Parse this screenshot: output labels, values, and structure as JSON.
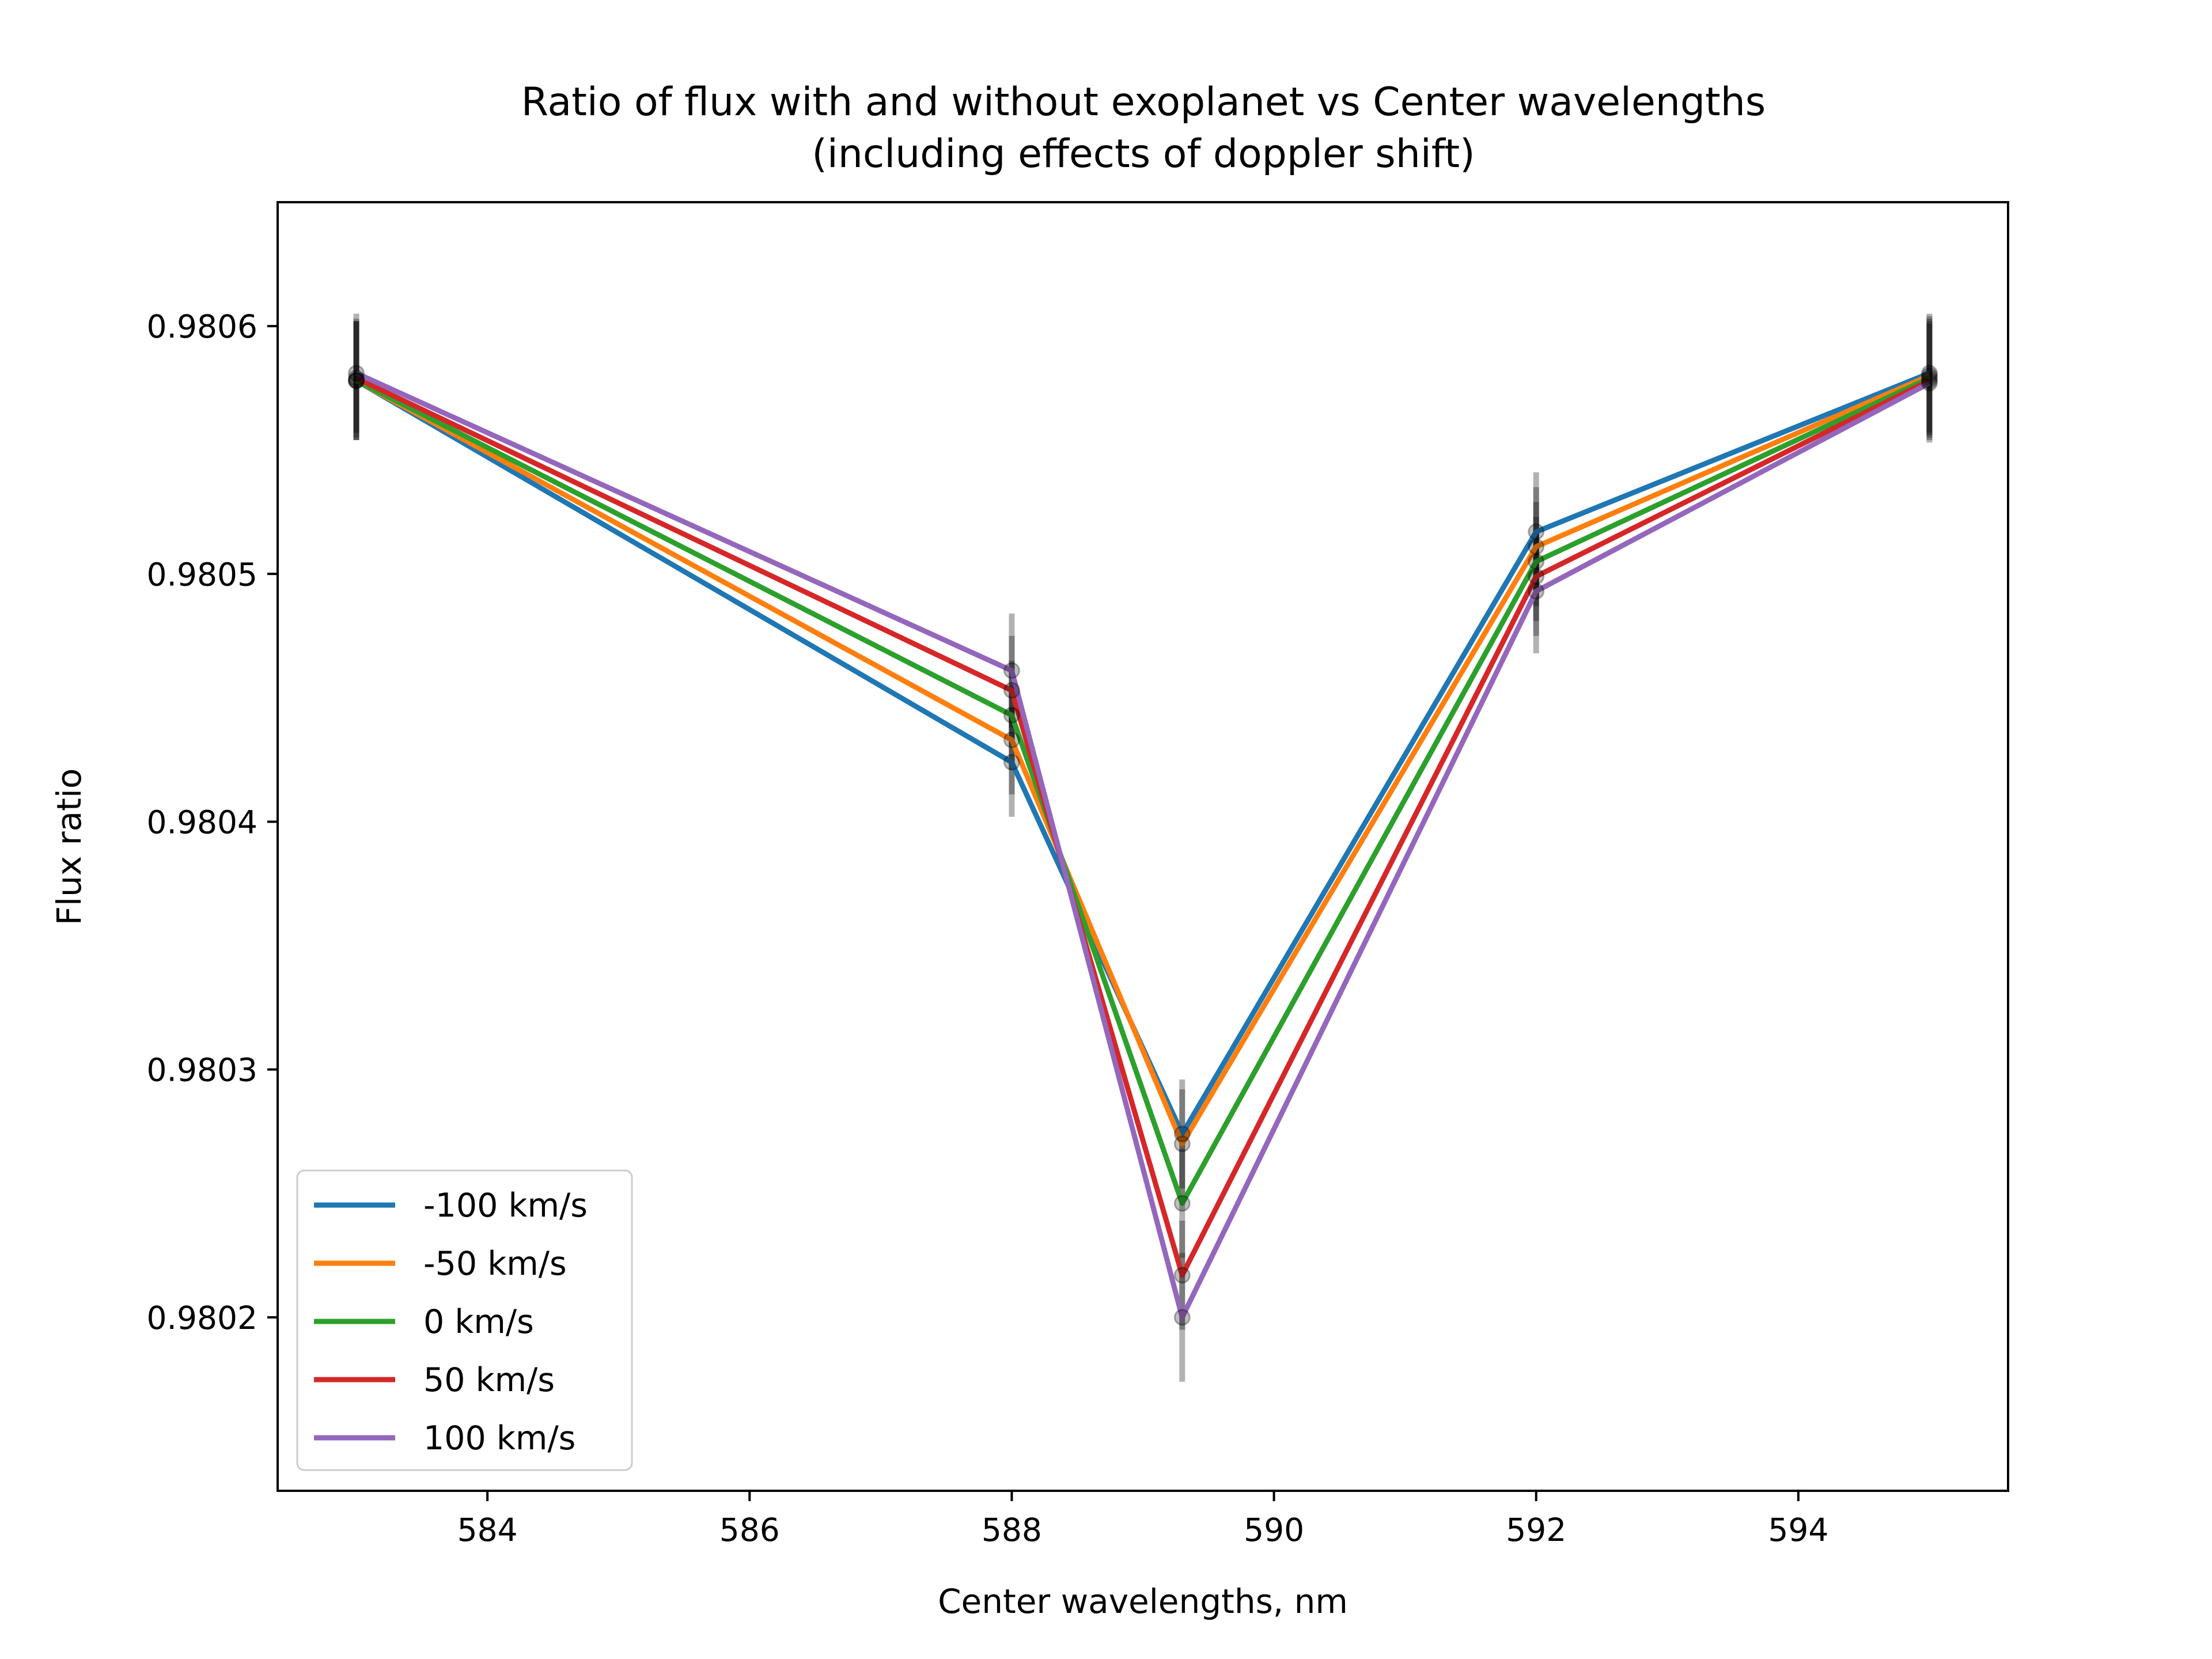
{
  "chart_data": {
    "type": "line",
    "title": "Ratio of flux with and without exoplanet vs Center wavelengths",
    "subtitle": "(including effects of doppler shift)",
    "xlabel": "Center wavelengths, nm",
    "ylabel": "Flux ratio",
    "xlim": [
      582.4,
      595.6
    ],
    "ylim": [
      0.98013,
      0.98065
    ],
    "xticks": [
      584,
      586,
      588,
      590,
      592,
      594
    ],
    "xtick_labels": [
      "584",
      "586",
      "588",
      "590",
      "592",
      "594"
    ],
    "yticks": [
      0.9802,
      0.9803,
      0.9804,
      0.9805,
      0.9806
    ],
    "ytick_labels": [
      "0.9802",
      "0.9803",
      "0.9804",
      "0.9805",
      "0.9806"
    ],
    "grid": false,
    "legend_position": "lower-left",
    "x": [
      583.0,
      588.0,
      589.3,
      592.0,
      595.0
    ],
    "series": [
      {
        "name": "-100 km/s",
        "color": "#1f77b4",
        "values": [
          0.980578,
          0.980424,
          0.980274,
          0.980517,
          0.980581
        ],
        "errors": [
          2.4e-05,
          2.2e-05,
          2.2e-05,
          2.4e-05,
          2.4e-05
        ]
      },
      {
        "name": "-50 km/s",
        "color": "#ff7f0e",
        "values": [
          0.980578,
          0.980433,
          0.98027,
          0.980511,
          0.98058
        ],
        "errors": [
          2.4e-05,
          2.2e-05,
          2.2e-05,
          2.4e-05,
          2.4e-05
        ]
      },
      {
        "name": "0 km/s",
        "color": "#2ca02c",
        "values": [
          0.980578,
          0.980443,
          0.980246,
          0.980505,
          0.980579
        ],
        "errors": [
          2.4e-05,
          2.2e-05,
          2.2e-05,
          2.4e-05,
          2.4e-05
        ]
      },
      {
        "name": "50 km/s",
        "color": "#d62728",
        "values": [
          0.980579,
          0.980453,
          0.980217,
          0.980499,
          0.980578
        ],
        "errors": [
          2.4e-05,
          2.2e-05,
          2.2e-05,
          2.4e-05,
          2.4e-05
        ]
      },
      {
        "name": "100 km/s",
        "color": "#9467bd",
        "values": [
          0.980581,
          0.980461,
          0.9802,
          0.980493,
          0.980577
        ],
        "errors": [
          2.4e-05,
          2.3e-05,
          2.6e-05,
          2.5e-05,
          2.4e-05
        ]
      }
    ]
  }
}
